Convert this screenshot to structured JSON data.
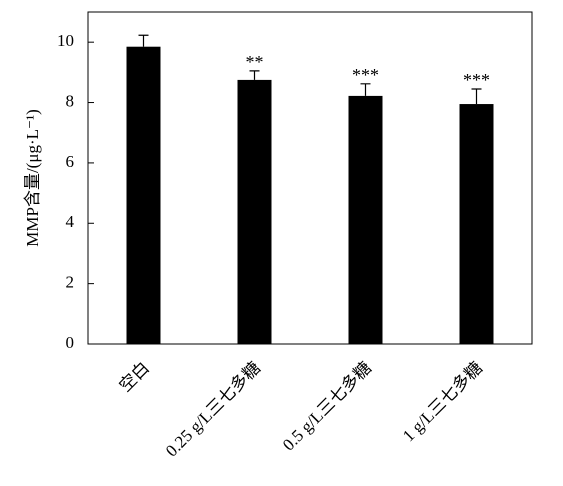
{
  "chart_data": {
    "type": "bar",
    "categories": [
      "空白",
      "0.25 g/L三七多糖",
      "0.5 g/L三七多糖",
      "1 g/L三七多糖"
    ],
    "values": [
      9.85,
      8.75,
      8.22,
      7.95
    ],
    "errors": [
      0.38,
      0.3,
      0.4,
      0.5
    ],
    "significance": [
      null,
      "**",
      "***",
      "***"
    ],
    "color": "#000000",
    "y_label": "MMP含量/(μg·L⁻¹)",
    "ylim": [
      0,
      11
    ],
    "yticks": [
      0,
      2,
      4,
      6,
      8,
      10
    ],
    "grid": false
  }
}
